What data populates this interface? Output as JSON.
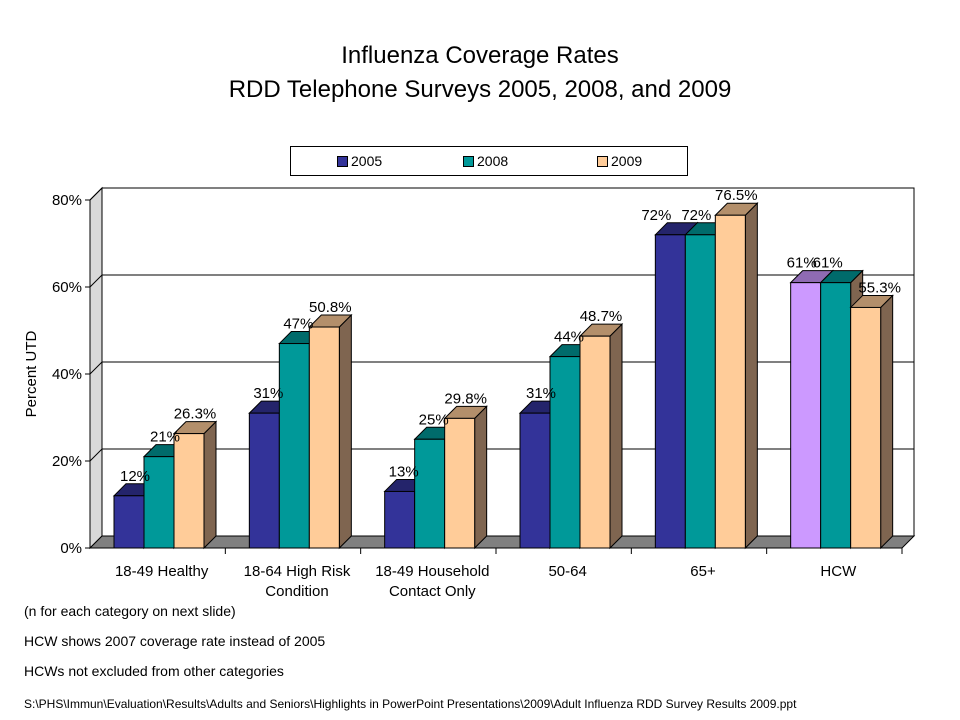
{
  "chart_data": {
    "type": "bar",
    "title": "Influenza Coverage Rates",
    "subtitle": "RDD Telephone Surveys 2005, 2008, and 2009",
    "ylabel": "Percent UTD",
    "ylim": [
      0,
      80
    ],
    "yticks": [
      "0%",
      "20%",
      "40%",
      "60%",
      "80%"
    ],
    "grid": true,
    "legend_position": "top",
    "categories": [
      [
        "18-49 Healthy"
      ],
      [
        "18-64 High Risk",
        "Condition"
      ],
      [
        "18-49 Household",
        "Contact Only"
      ],
      [
        "50-64"
      ],
      [
        "65+"
      ],
      [
        "HCW"
      ]
    ],
    "series": [
      {
        "name": "2005",
        "color": "#333399",
        "values": [
          12,
          31,
          13,
          31,
          72,
          61
        ],
        "labels": [
          "12%",
          "31%",
          "13%",
          "31%",
          "72%",
          "61%"
        ],
        "special_colors": [
          null,
          null,
          null,
          null,
          null,
          "#CC99FF"
        ]
      },
      {
        "name": "2008",
        "color": "#009999",
        "values": [
          21,
          47,
          25,
          44,
          72,
          61
        ],
        "labels": [
          "21%",
          "47%",
          "25%",
          "44%",
          "72%",
          "61%"
        ]
      },
      {
        "name": "2009",
        "color": "#FFCC99",
        "values": [
          26.3,
          50.8,
          29.8,
          48.7,
          76.5,
          55.3
        ],
        "labels": [
          "26.3%",
          "50.8%",
          "29.8%",
          "48.7%",
          "76.5%",
          "55.3%"
        ]
      }
    ]
  },
  "notes": {
    "n1": "(n for each category on next slide)",
    "n2": "HCW shows 2007 coverage rate instead of 2005",
    "n3": "HCWs not excluded from other categories",
    "path": "S:\\PHS\\Immun\\Evaluation\\Results\\Adults and Seniors\\Highlights in PowerPoint Presentations\\2009\\Adult Influenza RDD Survey Results 2009.ppt"
  }
}
